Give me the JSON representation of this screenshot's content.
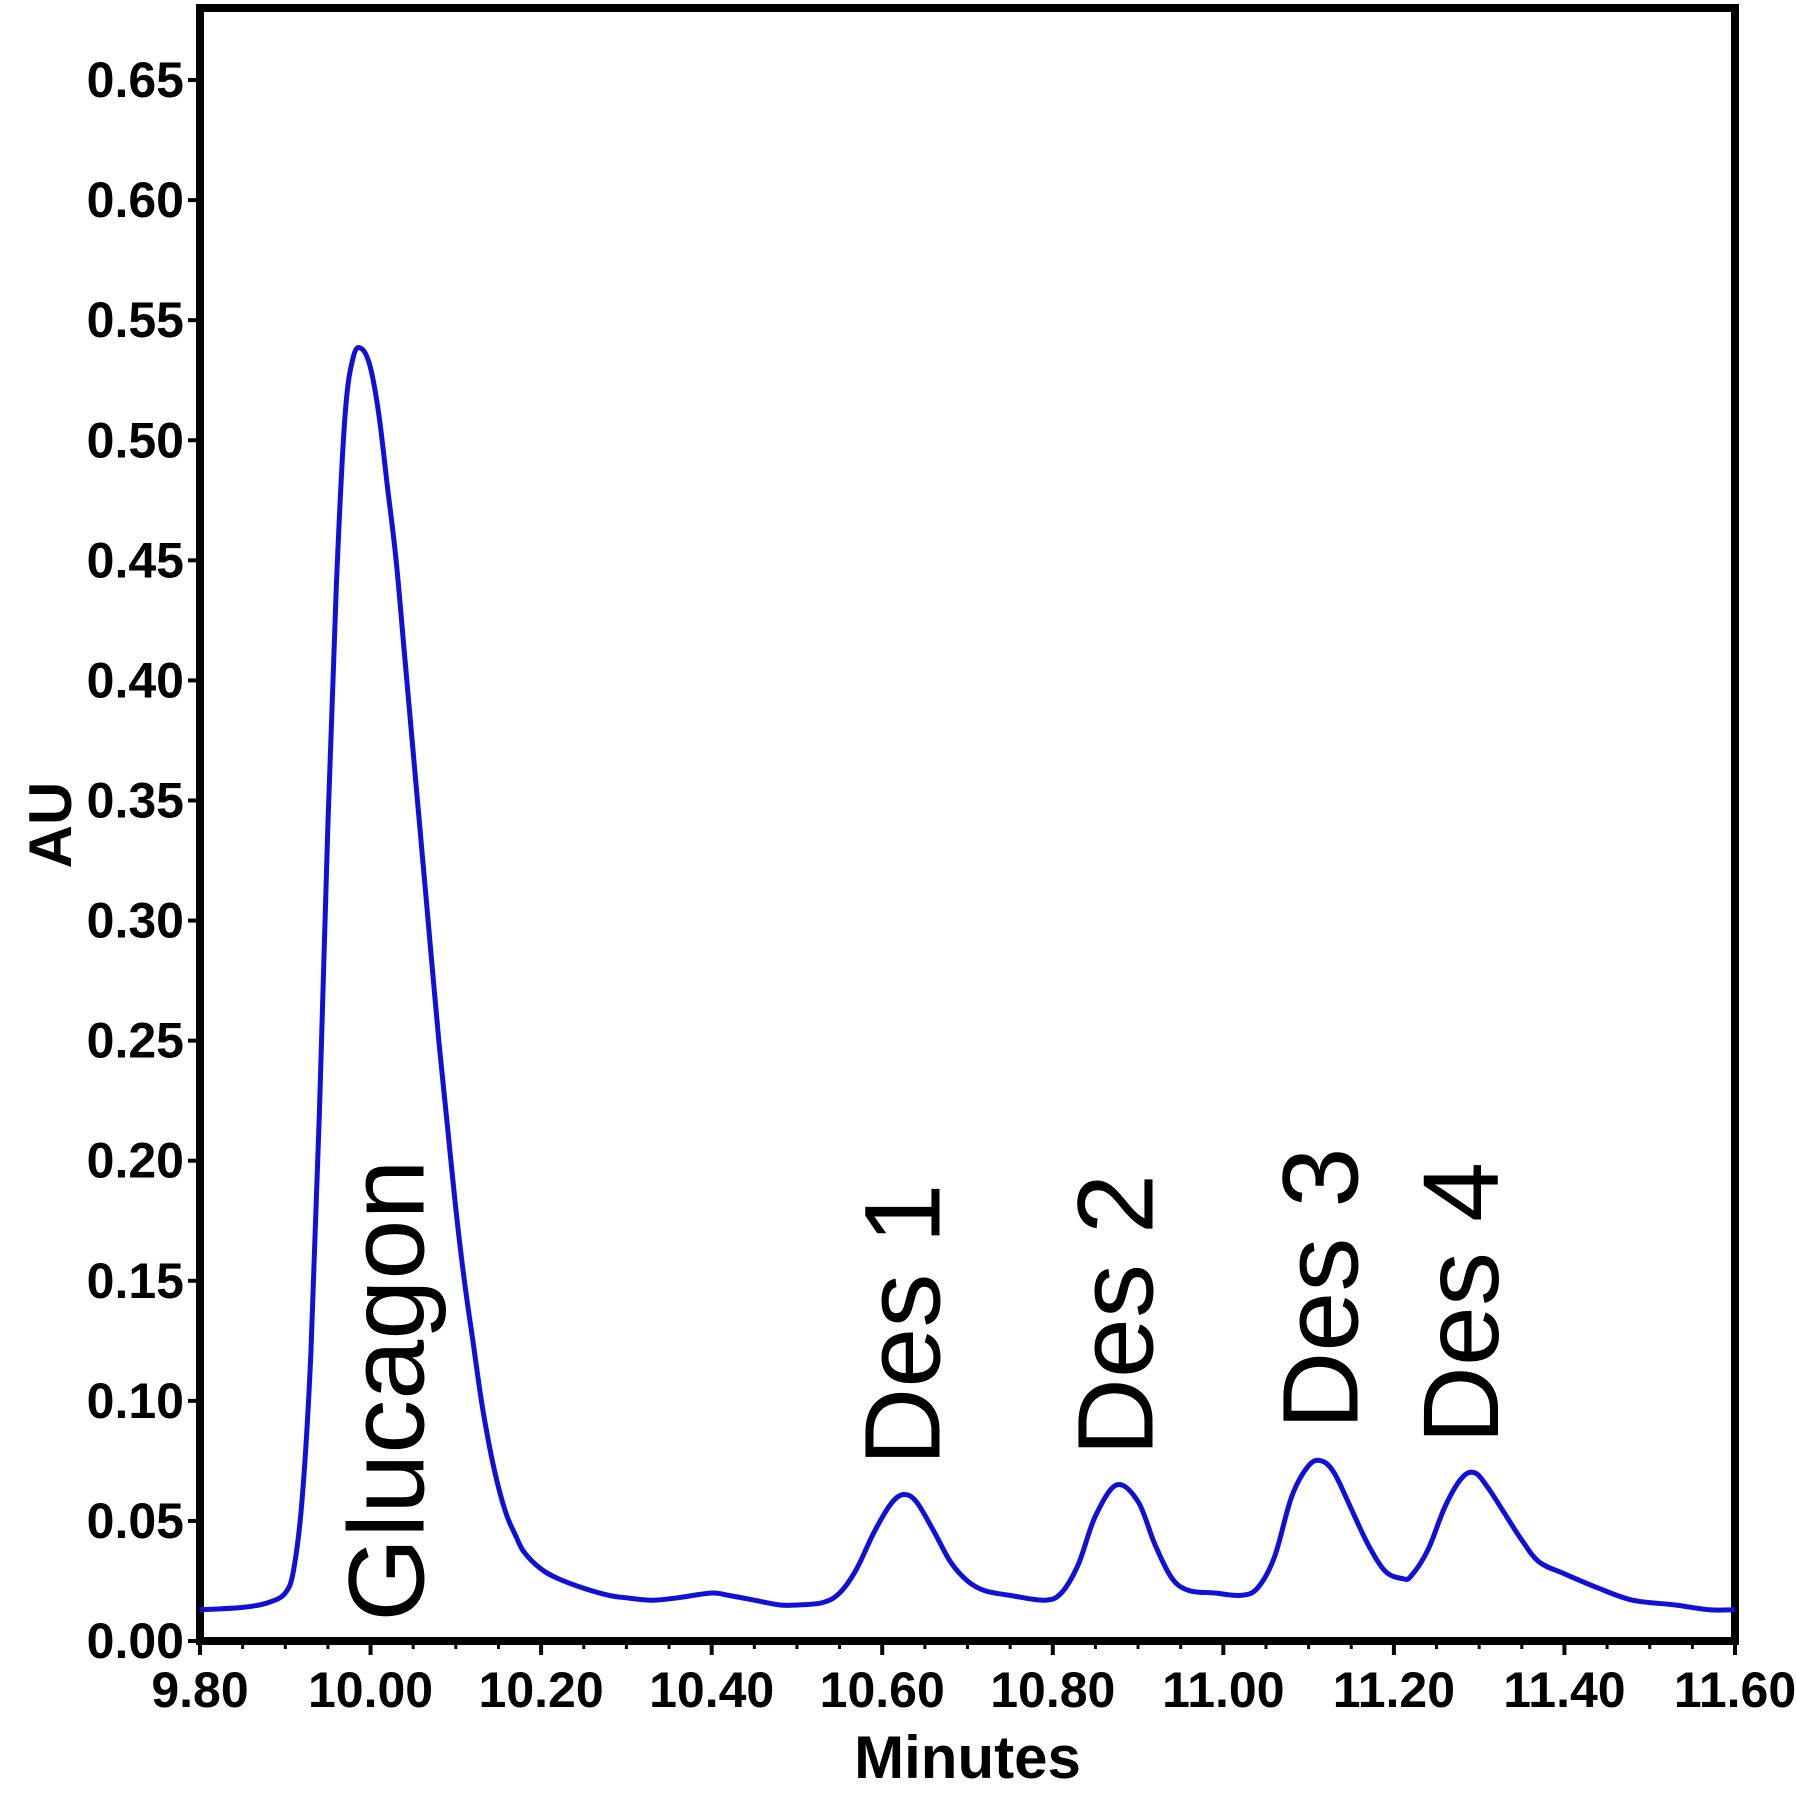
{
  "chart_data": {
    "type": "line",
    "title": "",
    "xlabel": "Minutes",
    "ylabel": "AU",
    "xlim": [
      9.8,
      11.6
    ],
    "ylim": [
      0.0,
      0.68
    ],
    "grid": false,
    "legend": "none",
    "x_ticks": [
      "9.80",
      "10.00",
      "10.20",
      "10.40",
      "10.60",
      "10.80",
      "11.00",
      "11.20",
      "11.40",
      "11.60"
    ],
    "y_ticks": [
      "0.00",
      "0.05",
      "0.10",
      "0.15",
      "0.20",
      "0.25",
      "0.30",
      "0.35",
      "0.40",
      "0.45",
      "0.50",
      "0.55",
      "0.60",
      "0.65"
    ],
    "series": [
      {
        "color": "#1010d8",
        "x": [
          9.8,
          9.85,
          9.88,
          9.9,
          9.91,
          9.92,
          9.93,
          9.94,
          9.95,
          9.96,
          9.97,
          9.98,
          9.99,
          10.0,
          10.01,
          10.02,
          10.03,
          10.04,
          10.05,
          10.06,
          10.07,
          10.08,
          10.09,
          10.1,
          10.11,
          10.12,
          10.13,
          10.14,
          10.15,
          10.16,
          10.17,
          10.18,
          10.2,
          10.22,
          10.25,
          10.28,
          10.3,
          10.33,
          10.36,
          10.4,
          10.42,
          10.45,
          10.48,
          10.5,
          10.53,
          10.55,
          10.57,
          10.59,
          10.61,
          10.625,
          10.64,
          10.66,
          10.68,
          10.7,
          10.72,
          10.75,
          10.79,
          10.81,
          10.83,
          10.85,
          10.875,
          10.9,
          10.92,
          10.94,
          10.96,
          10.99,
          11.02,
          11.04,
          11.06,
          11.08,
          11.1,
          11.115,
          11.13,
          11.15,
          11.17,
          11.19,
          11.21,
          11.22,
          11.24,
          11.26,
          11.28,
          11.295,
          11.31,
          11.33,
          11.35,
          11.37,
          11.4,
          11.44,
          11.48,
          11.53,
          11.57,
          11.6
        ],
        "y": [
          0.013,
          0.014,
          0.016,
          0.02,
          0.03,
          0.06,
          0.12,
          0.22,
          0.34,
          0.44,
          0.51,
          0.535,
          0.538,
          0.53,
          0.51,
          0.48,
          0.45,
          0.41,
          0.37,
          0.33,
          0.29,
          0.25,
          0.215,
          0.18,
          0.15,
          0.125,
          0.1,
          0.08,
          0.064,
          0.052,
          0.044,
          0.037,
          0.03,
          0.026,
          0.022,
          0.019,
          0.018,
          0.017,
          0.018,
          0.02,
          0.019,
          0.017,
          0.015,
          0.015,
          0.016,
          0.02,
          0.03,
          0.045,
          0.057,
          0.061,
          0.058,
          0.046,
          0.033,
          0.025,
          0.021,
          0.019,
          0.017,
          0.02,
          0.032,
          0.052,
          0.065,
          0.058,
          0.04,
          0.026,
          0.021,
          0.02,
          0.019,
          0.022,
          0.035,
          0.06,
          0.073,
          0.075,
          0.07,
          0.055,
          0.04,
          0.029,
          0.026,
          0.027,
          0.038,
          0.056,
          0.068,
          0.07,
          0.064,
          0.053,
          0.042,
          0.033,
          0.028,
          0.022,
          0.017,
          0.015,
          0.013,
          0.013
        ]
      }
    ],
    "annotations": [
      {
        "text": "Glucagon",
        "x": 10.02,
        "y": 0.008
      },
      {
        "text": "Des 1",
        "x": 10.625,
        "y": 0.073
      },
      {
        "text": "Des 2",
        "x": 10.875,
        "y": 0.077
      },
      {
        "text": "Des 3",
        "x": 11.115,
        "y": 0.088
      },
      {
        "text": "Des 4",
        "x": 11.28,
        "y": 0.082
      }
    ]
  }
}
